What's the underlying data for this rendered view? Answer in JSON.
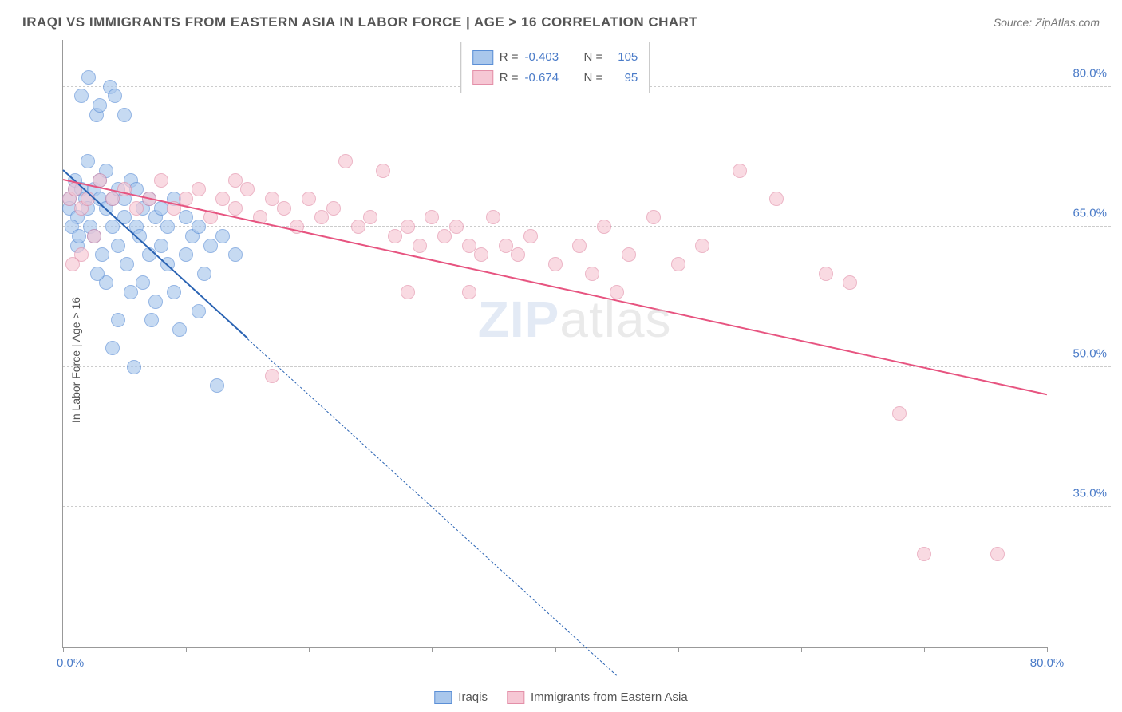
{
  "title": "IRAQI VS IMMIGRANTS FROM EASTERN ASIA IN LABOR FORCE | AGE > 16 CORRELATION CHART",
  "source_label": "Source: ZipAtlas.com",
  "y_axis_title": "In Labor Force | Age > 16",
  "watermark": {
    "part_a": "ZIP",
    "part_b": "atlas"
  },
  "chart": {
    "type": "scatter",
    "background_color": "#ffffff",
    "grid_color": "#cccccc",
    "axis_color": "#999999",
    "tick_label_color": "#4a7bc8",
    "xlim": [
      0,
      80
    ],
    "ylim": [
      20,
      85
    ],
    "x_ticks": [
      0,
      10,
      20,
      30,
      40,
      50,
      60,
      70,
      80
    ],
    "x_tick_labels": {
      "0": "0.0%",
      "80": "80.0%"
    },
    "y_ticks": [
      35,
      50,
      65,
      80
    ],
    "y_tick_labels": {
      "35": "35.0%",
      "50": "50.0%",
      "65": "65.0%",
      "80": "80.0%"
    },
    "marker_radius": 9,
    "marker_fill_opacity": 0.35,
    "marker_stroke_width": 1.2,
    "series": [
      {
        "id": "iraqis",
        "label": "Iraqis",
        "stroke": "#5b8fd6",
        "fill": "#a9c7ec",
        "reg_color": "#2a63b3",
        "R": "-0.403",
        "N": "105",
        "regression": {
          "x1": 0,
          "y1": 71,
          "x2": 15,
          "y2": 53,
          "dashed_x2": 45,
          "dashed_y2": 17
        },
        "points": [
          [
            0.5,
            68
          ],
          [
            0.5,
            67
          ],
          [
            1,
            69
          ],
          [
            1,
            70
          ],
          [
            1.2,
            66
          ],
          [
            1.5,
            79
          ],
          [
            1.5,
            69
          ],
          [
            1.8,
            68
          ],
          [
            2,
            72
          ],
          [
            2,
            67
          ],
          [
            2.1,
            81
          ],
          [
            2.2,
            65
          ],
          [
            2.5,
            69
          ],
          [
            2.5,
            64
          ],
          [
            2.7,
            77
          ],
          [
            3,
            70
          ],
          [
            3,
            68
          ],
          [
            3,
            78
          ],
          [
            3.2,
            62
          ],
          [
            3.5,
            71
          ],
          [
            3.5,
            67
          ],
          [
            3.5,
            59
          ],
          [
            3.8,
            80
          ],
          [
            4,
            68
          ],
          [
            4,
            65
          ],
          [
            4.2,
            79
          ],
          [
            4.5,
            69
          ],
          [
            4.5,
            63
          ],
          [
            4.5,
            55
          ],
          [
            5,
            68
          ],
          [
            5,
            66
          ],
          [
            5,
            77
          ],
          [
            5.2,
            61
          ],
          [
            5.5,
            70
          ],
          [
            5.5,
            58
          ],
          [
            5.8,
            50
          ],
          [
            6,
            69
          ],
          [
            6,
            65
          ],
          [
            6.2,
            64
          ],
          [
            6.5,
            67
          ],
          [
            6.5,
            59
          ],
          [
            7,
            68
          ],
          [
            7,
            62
          ],
          [
            7.2,
            55
          ],
          [
            7.5,
            66
          ],
          [
            7.5,
            57
          ],
          [
            8,
            67
          ],
          [
            8,
            63
          ],
          [
            8.5,
            61
          ],
          [
            8.5,
            65
          ],
          [
            9,
            68
          ],
          [
            9,
            58
          ],
          [
            9.5,
            54
          ],
          [
            10,
            66
          ],
          [
            10,
            62
          ],
          [
            10.5,
            64
          ],
          [
            11,
            56
          ],
          [
            11,
            65
          ],
          [
            11.5,
            60
          ],
          [
            12,
            63
          ],
          [
            12.5,
            48
          ],
          [
            13,
            64
          ],
          [
            14,
            62
          ],
          [
            1.2,
            63
          ],
          [
            2.8,
            60
          ],
          [
            4,
            52
          ],
          [
            0.7,
            65
          ],
          [
            1.3,
            64
          ]
        ]
      },
      {
        "id": "easia",
        "label": "Immigrants from Eastern Asia",
        "stroke": "#e38fa8",
        "fill": "#f6c7d4",
        "reg_color": "#e75480",
        "R": "-0.674",
        "N": "95",
        "regression": {
          "x1": 0,
          "y1": 70,
          "x2": 80,
          "y2": 47
        },
        "points": [
          [
            0.5,
            68
          ],
          [
            1,
            69
          ],
          [
            1.5,
            67
          ],
          [
            2,
            68
          ],
          [
            3,
            70
          ],
          [
            4,
            68
          ],
          [
            5,
            69
          ],
          [
            6,
            67
          ],
          [
            7,
            68
          ],
          [
            8,
            70
          ],
          [
            9,
            67
          ],
          [
            10,
            68
          ],
          [
            11,
            69
          ],
          [
            12,
            66
          ],
          [
            13,
            68
          ],
          [
            14,
            67
          ],
          [
            14,
            70
          ],
          [
            15,
            69
          ],
          [
            16,
            66
          ],
          [
            17,
            68
          ],
          [
            18,
            67
          ],
          [
            19,
            65
          ],
          [
            20,
            68
          ],
          [
            21,
            66
          ],
          [
            22,
            67
          ],
          [
            23,
            72
          ],
          [
            24,
            65
          ],
          [
            25,
            66
          ],
          [
            26,
            71
          ],
          [
            27,
            64
          ],
          [
            28,
            65
          ],
          [
            29,
            63
          ],
          [
            30,
            66
          ],
          [
            31,
            64
          ],
          [
            32,
            65
          ],
          [
            33,
            63
          ],
          [
            34,
            62
          ],
          [
            35,
            66
          ],
          [
            36,
            63
          ],
          [
            37,
            62
          ],
          [
            38,
            64
          ],
          [
            40,
            61
          ],
          [
            42,
            63
          ],
          [
            43,
            60
          ],
          [
            44,
            65
          ],
          [
            45,
            58
          ],
          [
            46,
            62
          ],
          [
            48,
            66
          ],
          [
            50,
            61
          ],
          [
            52,
            63
          ],
          [
            55,
            71
          ],
          [
            58,
            68
          ],
          [
            62,
            60
          ],
          [
            64,
            59
          ],
          [
            68,
            45
          ],
          [
            70,
            30
          ],
          [
            76,
            30
          ],
          [
            17,
            49
          ],
          [
            28,
            58
          ],
          [
            33,
            58
          ],
          [
            1.5,
            62
          ],
          [
            2.5,
            64
          ],
          [
            0.8,
            61
          ]
        ]
      }
    ]
  },
  "legend_top": {
    "border_color": "#bbbbbb",
    "text_color": "#555555",
    "value_color": "#4a7bc8",
    "r_label": "R =",
    "n_label": "N ="
  },
  "legend_bottom_text_color": "#555555"
}
